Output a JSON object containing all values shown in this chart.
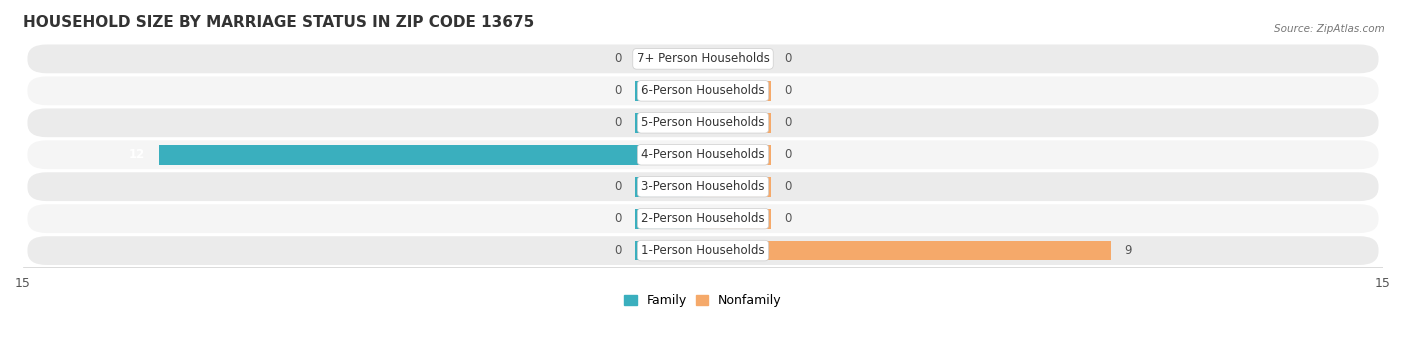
{
  "title": "HOUSEHOLD SIZE BY MARRIAGE STATUS IN ZIP CODE 13675",
  "source": "Source: ZipAtlas.com",
  "categories": [
    "7+ Person Households",
    "6-Person Households",
    "5-Person Households",
    "4-Person Households",
    "3-Person Households",
    "2-Person Households",
    "1-Person Households"
  ],
  "family_values": [
    0,
    0,
    0,
    12,
    0,
    0,
    0
  ],
  "nonfamily_values": [
    0,
    0,
    0,
    0,
    0,
    0,
    9
  ],
  "family_color": "#3AAFBE",
  "nonfamily_color": "#F5A96A",
  "row_bg_even": "#EBEBEB",
  "row_bg_odd": "#F5F5F5",
  "xlim": 15,
  "bar_height": 0.62,
  "stub_size": 1.5,
  "label_fontsize": 8.5,
  "title_fontsize": 11,
  "value_label_fontsize": 8.5,
  "legend_fontsize": 9,
  "axis_label_fontsize": 9
}
